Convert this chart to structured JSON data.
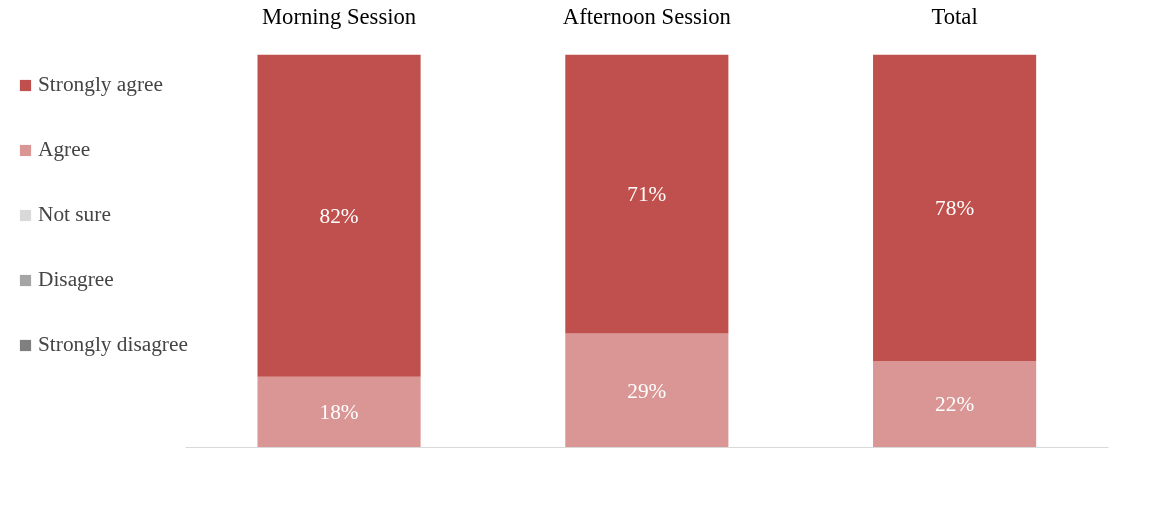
{
  "chart_data": {
    "type": "bar",
    "stacked": true,
    "categories": [
      "Morning Session",
      "Afternoon Session",
      "Total"
    ],
    "ylim": [
      0,
      100
    ],
    "tick_labels": "x",
    "legend": "left",
    "series": [
      {
        "name": "Strongly disagree",
        "color": "#7f7f7f",
        "values": [
          0,
          0,
          0
        ],
        "value_labels": [
          null,
          null,
          null
        ]
      },
      {
        "name": "Disagree",
        "color": "#a5a5a5",
        "values": [
          0,
          0,
          0
        ],
        "value_labels": [
          null,
          null,
          null
        ]
      },
      {
        "name": "Not sure",
        "color": "#d9d9d9",
        "values": [
          0,
          0,
          0
        ],
        "value_labels": [
          null,
          null,
          null
        ]
      },
      {
        "name": "Agree",
        "color": "#d99694",
        "values": [
          18,
          29,
          22
        ],
        "value_labels": [
          "18%",
          "29%",
          "22%"
        ]
      },
      {
        "name": "Strongly agree",
        "color": "#c0504d",
        "values": [
          82,
          71,
          78
        ],
        "value_labels": [
          "82%",
          "71%",
          "78%"
        ]
      }
    ]
  }
}
